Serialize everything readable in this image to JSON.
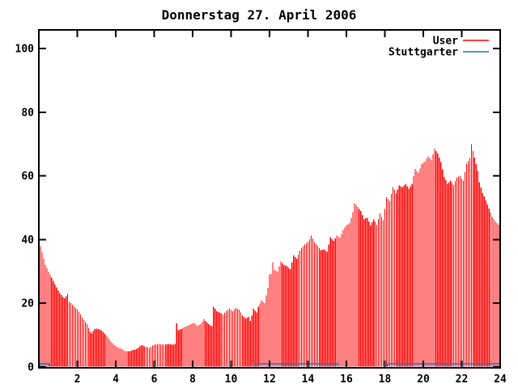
{
  "title": "Donnerstag 27. April 2006",
  "colors": {
    "background": "#ffffff",
    "axis": "#000000",
    "user_series": "#ff0000",
    "stuttgarter_series": "#1874cd"
  },
  "legend": [
    {
      "label": "User",
      "color": "#ff0000"
    },
    {
      "label": "Stuttgarter",
      "color": "#1874cd"
    }
  ],
  "axes": {
    "x": {
      "min": 0,
      "max": 24,
      "tick_step": 2,
      "tick_values": [
        2,
        4,
        6,
        8,
        10,
        12,
        14,
        16,
        18,
        20,
        22,
        24
      ],
      "tick_labels": [
        "2",
        "4",
        "6",
        "8",
        "10",
        "12",
        "14",
        "16",
        "18",
        "20",
        "22",
        "24"
      ]
    },
    "y": {
      "min": 0,
      "max": 106,
      "tick_step": 20,
      "tick_values": [
        0,
        20,
        40,
        60,
        80,
        100
      ],
      "tick_labels": [
        "0",
        "20",
        "40",
        "60",
        "80",
        "100"
      ]
    }
  },
  "chart_data": {
    "type": "bar",
    "title": "Donnerstag 27. April 2006",
    "xlabel": "",
    "ylabel": "",
    "xlim": [
      0,
      24
    ],
    "ylim": [
      0,
      106
    ],
    "grid": false,
    "legend_position": "top-right-inside",
    "note": "x axis is time of day in hours; User series drawn as dense red 5-minute impulses; values below are the envelope read at ~10-minute resolution; Stuttgarter series is a flat line at value ~1 in three time segments",
    "series": [
      {
        "name": "User",
        "style": "impulses",
        "color": "#ff0000",
        "points": [
          [
            0.08,
            38
          ],
          [
            0.17,
            36
          ],
          [
            0.25,
            34
          ],
          [
            0.33,
            32
          ],
          [
            0.42,
            31
          ],
          [
            0.5,
            30
          ],
          [
            0.58,
            29
          ],
          [
            0.67,
            28
          ],
          [
            0.75,
            27
          ],
          [
            0.83,
            26
          ],
          [
            1.0,
            24
          ],
          [
            1.17,
            22.5
          ],
          [
            1.33,
            21.5
          ],
          [
            1.5,
            23
          ],
          [
            1.58,
            20.5
          ],
          [
            1.75,
            19.5
          ],
          [
            2.0,
            18
          ],
          [
            2.17,
            16.5
          ],
          [
            2.25,
            15.5
          ],
          [
            2.33,
            14.8
          ],
          [
            2.5,
            13.5
          ],
          [
            2.67,
            11
          ],
          [
            2.75,
            10.5
          ],
          [
            2.92,
            12
          ],
          [
            3.08,
            12
          ],
          [
            3.25,
            11.5
          ],
          [
            3.42,
            10.5
          ],
          [
            3.58,
            9.5
          ],
          [
            3.75,
            8
          ],
          [
            3.92,
            7
          ],
          [
            4.08,
            6.2
          ],
          [
            4.25,
            5.8
          ],
          [
            4.5,
            5
          ],
          [
            4.75,
            5
          ],
          [
            5.0,
            5.5
          ],
          [
            5.17,
            6
          ],
          [
            5.33,
            6.9
          ],
          [
            5.5,
            6.5
          ],
          [
            5.75,
            6
          ],
          [
            6.0,
            7
          ],
          [
            6.25,
            7.2
          ],
          [
            6.5,
            7
          ],
          [
            6.75,
            7.2
          ],
          [
            7.0,
            7
          ],
          [
            7.08,
            7
          ],
          [
            7.17,
            14
          ],
          [
            7.25,
            11.5
          ],
          [
            7.42,
            12
          ],
          [
            7.58,
            12.5
          ],
          [
            7.75,
            13
          ],
          [
            7.92,
            13.5
          ],
          [
            8.08,
            13.8
          ],
          [
            8.25,
            12.8
          ],
          [
            8.42,
            13.5
          ],
          [
            8.58,
            15
          ],
          [
            8.75,
            14
          ],
          [
            8.92,
            13
          ],
          [
            9.0,
            12.8
          ],
          [
            9.08,
            19
          ],
          [
            9.25,
            17.5
          ],
          [
            9.42,
            17
          ],
          [
            9.58,
            16.5
          ],
          [
            9.75,
            17.5
          ],
          [
            9.92,
            18.4
          ],
          [
            10.08,
            17.5
          ],
          [
            10.25,
            18.5
          ],
          [
            10.42,
            18
          ],
          [
            10.58,
            16.3
          ],
          [
            10.75,
            15.2
          ],
          [
            10.92,
            15.8
          ],
          [
            11.0,
            14.5
          ],
          [
            11.08,
            16
          ],
          [
            11.17,
            18.4
          ],
          [
            11.33,
            17
          ],
          [
            11.42,
            19
          ],
          [
            11.58,
            20.9
          ],
          [
            11.75,
            20
          ],
          [
            11.92,
            25
          ],
          [
            12.0,
            29
          ],
          [
            12.08,
            29
          ],
          [
            12.17,
            33
          ],
          [
            12.25,
            30.5
          ],
          [
            12.42,
            30
          ],
          [
            12.58,
            33.2
          ],
          [
            12.75,
            32
          ],
          [
            12.92,
            31.6
          ],
          [
            13.08,
            30.6
          ],
          [
            13.25,
            35
          ],
          [
            13.42,
            34
          ],
          [
            13.58,
            36.5
          ],
          [
            13.75,
            38
          ],
          [
            13.92,
            38.8
          ],
          [
            14.08,
            40
          ],
          [
            14.17,
            41.3
          ],
          [
            14.33,
            39.3
          ],
          [
            14.5,
            38
          ],
          [
            14.67,
            36.7
          ],
          [
            14.83,
            37
          ],
          [
            15.0,
            36.2
          ],
          [
            15.17,
            40.8
          ],
          [
            15.33,
            39.5
          ],
          [
            15.5,
            41.3
          ],
          [
            15.67,
            40.6
          ],
          [
            15.83,
            43
          ],
          [
            16.0,
            44.5
          ],
          [
            16.17,
            45.2
          ],
          [
            16.33,
            48.5
          ],
          [
            16.42,
            51.5
          ],
          [
            16.58,
            50.3
          ],
          [
            16.75,
            49
          ],
          [
            16.92,
            46.4
          ],
          [
            17.08,
            46.9
          ],
          [
            17.25,
            44.5
          ],
          [
            17.42,
            46.4
          ],
          [
            17.58,
            44.6
          ],
          [
            17.75,
            48.2
          ],
          [
            17.92,
            46
          ],
          [
            18.08,
            53.3
          ],
          [
            18.25,
            52
          ],
          [
            18.42,
            56.6
          ],
          [
            18.58,
            54.5
          ],
          [
            18.75,
            57
          ],
          [
            18.92,
            56.5
          ],
          [
            19.08,
            57.5
          ],
          [
            19.25,
            56
          ],
          [
            19.42,
            57.5
          ],
          [
            19.58,
            62.2
          ],
          [
            19.75,
            61
          ],
          [
            19.92,
            63.8
          ],
          [
            20.08,
            64.5
          ],
          [
            20.25,
            66.1
          ],
          [
            20.42,
            65
          ],
          [
            20.58,
            68.6
          ],
          [
            20.75,
            67
          ],
          [
            20.92,
            64.3
          ],
          [
            21.08,
            59.7
          ],
          [
            21.25,
            57.5
          ],
          [
            21.42,
            58.5
          ],
          [
            21.58,
            57.1
          ],
          [
            21.75,
            59.5
          ],
          [
            21.92,
            60
          ],
          [
            22.08,
            58.4
          ],
          [
            22.25,
            63.8
          ],
          [
            22.42,
            65.6
          ],
          [
            22.5,
            69.9
          ],
          [
            22.67,
            65.6
          ],
          [
            22.83,
            61.7
          ],
          [
            22.92,
            57.9
          ],
          [
            23.08,
            54.8
          ],
          [
            23.25,
            52.3
          ],
          [
            23.42,
            49.7
          ],
          [
            23.58,
            47.2
          ],
          [
            23.75,
            45.7
          ],
          [
            23.92,
            44.6
          ],
          [
            24.0,
            43.9
          ]
        ]
      },
      {
        "name": "Stuttgarter",
        "style": "line",
        "color": "#1874cd",
        "value": 1,
        "segments": [
          [
            0.08,
            0.55
          ],
          [
            11.17,
            15.58
          ],
          [
            18.12,
            24.0
          ]
        ]
      }
    ]
  }
}
